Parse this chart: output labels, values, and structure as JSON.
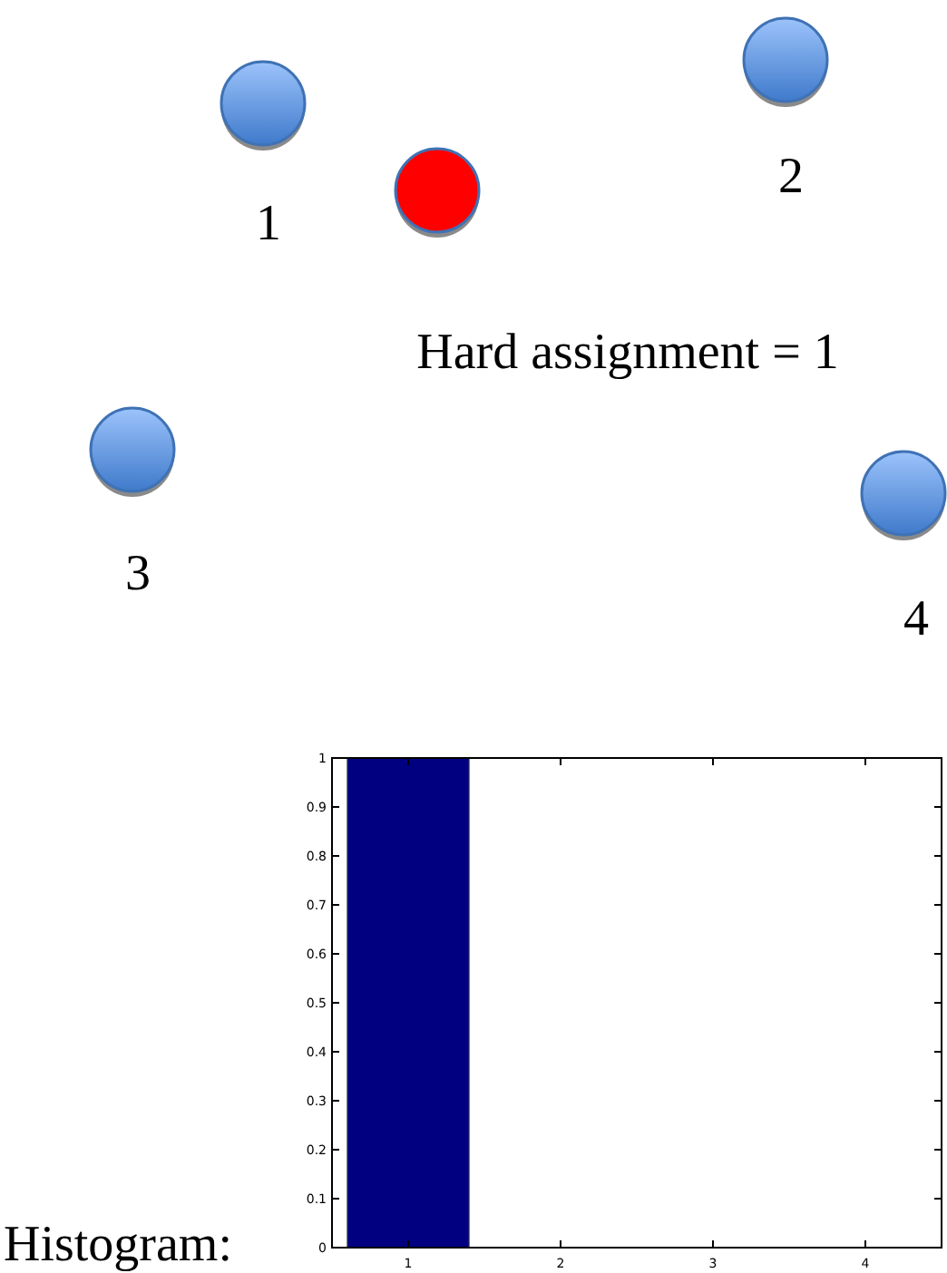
{
  "chart_data": {
    "type": "bar",
    "categories": [
      "1",
      "2",
      "3",
      "4"
    ],
    "values": [
      1,
      0,
      0,
      0
    ],
    "color": "#000080",
    "ylim": [
      0,
      1
    ],
    "yticks": [
      0,
      0.1,
      0.2,
      0.3,
      0.4,
      0.5,
      0.6,
      0.7,
      0.8,
      0.9,
      1
    ],
    "grid": false,
    "annotations": [
      "1",
      "2",
      "3",
      "4",
      "Hard assignment = 1",
      "Histogram:"
    ]
  }
}
